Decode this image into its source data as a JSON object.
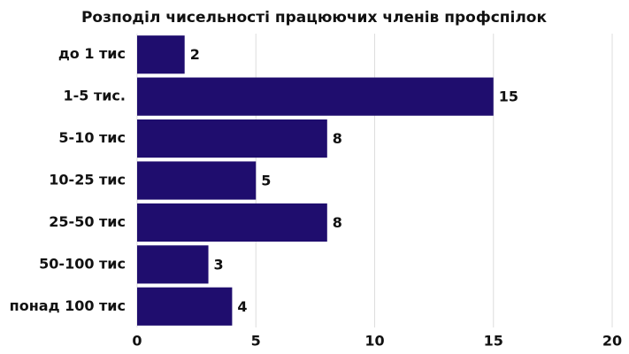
{
  "chart_data": {
    "type": "bar",
    "orientation": "horizontal",
    "title": "Розподіл чисельності працюючих членів профспілок",
    "categories": [
      "до 1 тис",
      "1-5 тис.",
      "5-10 тис",
      "10-25 тис",
      "25-50 тис",
      "50-100 тис",
      "понад 100 тис"
    ],
    "values": [
      2,
      15,
      8,
      5,
      8,
      3,
      4
    ],
    "color": "#1f0d6e",
    "xlim": [
      0,
      20
    ],
    "xticks": [
      0,
      5,
      10,
      15,
      20
    ],
    "grid": true
  }
}
